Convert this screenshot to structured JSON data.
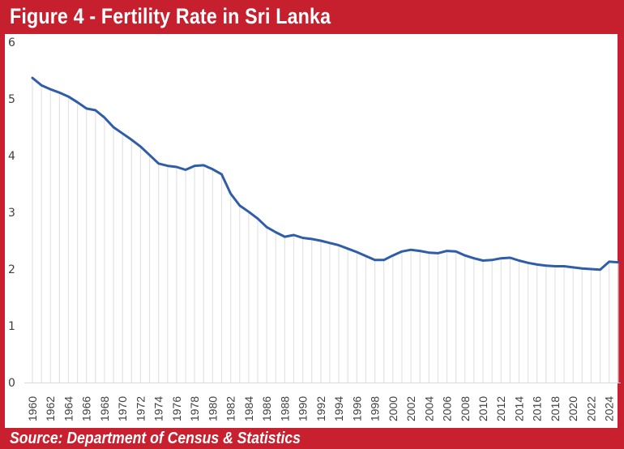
{
  "header": {
    "title": "Figure 4 - Fertility Rate in Sri Lanka"
  },
  "footer": {
    "source": "Source: Department of Census & Statistics"
  },
  "colors": {
    "frame": "#c61f2e",
    "line": "#2f5da8",
    "drop_lines": "#e3e3e3",
    "text": "#404040"
  },
  "chart_data": {
    "type": "line",
    "title": "Figure 4 - Fertility Rate in Sri Lanka",
    "xlabel": "",
    "ylabel": "",
    "ylim": [
      0,
      6
    ],
    "yticks": [
      "0",
      "1",
      "2",
      "3",
      "4",
      "5",
      "6"
    ],
    "xtick_labels": [
      "1960",
      "1962",
      "1964",
      "1966",
      "1968",
      "1970",
      "1972",
      "1974",
      "1976",
      "1978",
      "1980",
      "1982",
      "1984",
      "1986",
      "1988",
      "1990",
      "1992",
      "1994",
      "1996",
      "1998",
      "2000",
      "2002",
      "2004",
      "2006",
      "2008",
      "2010",
      "2012",
      "2014",
      "2016",
      "2018",
      "2020",
      "2022",
      "2024"
    ],
    "grid": false,
    "drop_lines": true,
    "legend": "none",
    "series": [
      {
        "name": "Fertility Rate",
        "x": [
          1960,
          1961,
          1962,
          1963,
          1964,
          1965,
          1966,
          1967,
          1968,
          1969,
          1970,
          1971,
          1972,
          1973,
          1974,
          1975,
          1976,
          1977,
          1978,
          1979,
          1980,
          1981,
          1982,
          1983,
          1984,
          1985,
          1986,
          1987,
          1988,
          1989,
          1990,
          1991,
          1992,
          1993,
          1994,
          1995,
          1996,
          1997,
          1998,
          1999,
          2000,
          2001,
          2002,
          2003,
          2004,
          2005,
          2006,
          2007,
          2008,
          2009,
          2010,
          2011,
          2012,
          2013,
          2014,
          2015,
          2016,
          2017,
          2018,
          2019,
          2020,
          2021,
          2022,
          2023,
          2024,
          2025
        ],
        "values": [
          5.37,
          5.24,
          5.17,
          5.11,
          5.04,
          4.94,
          4.83,
          4.8,
          4.67,
          4.5,
          4.39,
          4.28,
          4.16,
          4.01,
          3.86,
          3.82,
          3.8,
          3.75,
          3.82,
          3.83,
          3.76,
          3.67,
          3.33,
          3.12,
          3.01,
          2.89,
          2.74,
          2.65,
          2.57,
          2.6,
          2.55,
          2.53,
          2.5,
          2.46,
          2.42,
          2.36,
          2.3,
          2.23,
          2.16,
          2.16,
          2.24,
          2.31,
          2.34,
          2.32,
          2.29,
          2.28,
          2.32,
          2.31,
          2.24,
          2.19,
          2.15,
          2.16,
          2.19,
          2.2,
          2.15,
          2.11,
          2.08,
          2.06,
          2.05,
          2.05,
          2.03,
          2.01,
          2.0,
          1.99,
          2.13,
          2.12
        ]
      }
    ],
    "source": "Source: Department of Census & Statistics"
  }
}
